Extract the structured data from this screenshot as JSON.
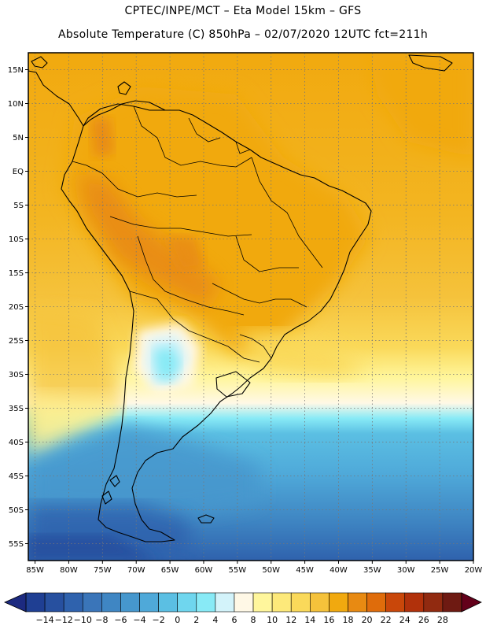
{
  "title": {
    "line1": "CPTEC/INPE/MCT –  Eta Model 15km – GFS",
    "line2": "Absolute Temperature (C) 850hPa – 02/07/2020 12UTC fct=211h"
  },
  "map": {
    "lat_labels": [
      "15N",
      "10N",
      "5N",
      "EQ",
      "5S",
      "10S",
      "15S",
      "20S",
      "25S",
      "30S",
      "35S",
      "40S",
      "45S",
      "50S",
      "55S"
    ],
    "lat_values": [
      15,
      10,
      5,
      0,
      -5,
      -10,
      -15,
      -20,
      -25,
      -30,
      -35,
      -40,
      -45,
      -50,
      -55
    ],
    "lon_labels": [
      "85W",
      "80W",
      "75W",
      "70W",
      "65W",
      "60W",
      "55W",
      "50W",
      "45W",
      "40W",
      "35W",
      "30W",
      "25W",
      "20W"
    ],
    "lon_values": [
      -85,
      -80,
      -75,
      -70,
      -65,
      -60,
      -55,
      -50,
      -45,
      -40,
      -35,
      -30,
      -25,
      -20
    ],
    "lat_range": [
      -57.5,
      17.5
    ],
    "lon_range": [
      -86,
      -20
    ],
    "grid": "dotted"
  },
  "colorbar": {
    "labels": [
      "-14",
      "-12",
      "-10",
      "-8",
      "-6",
      "-4",
      "-2",
      "0",
      "2",
      "4",
      "6",
      "8",
      "10",
      "12",
      "14",
      "16",
      "18",
      "20",
      "22",
      "24",
      "26",
      "28"
    ],
    "colors": [
      "#1f3f93",
      "#27509f",
      "#2f62ad",
      "#3a75b9",
      "#3f86c3",
      "#4697cd",
      "#4fa9d9",
      "#5bbfe3",
      "#6fd6ee",
      "#88eaf6",
      "#d3f3fa",
      "#fff8e6",
      "#fff69c",
      "#fde97a",
      "#fad95a",
      "#f5c23b",
      "#f1a90f",
      "#e88a12",
      "#df6c0b",
      "#c9470a",
      "#b1310b",
      "#912a10",
      "#6e1a12"
    ],
    "left_arrow_color": "#1c2a80",
    "right_arrow_color": "#63001a"
  }
}
